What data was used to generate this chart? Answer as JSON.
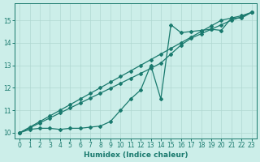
{
  "title": "",
  "xlabel": "Humidex (Indice chaleur)",
  "ylabel": "",
  "background_color": "#cceee9",
  "line_color": "#1a7a6e",
  "grid_color": "#b0d8d2",
  "xlim": [
    -0.5,
    23.5
  ],
  "ylim": [
    9.75,
    15.75
  ],
  "xticks": [
    0,
    1,
    2,
    3,
    4,
    5,
    6,
    7,
    8,
    9,
    10,
    11,
    12,
    13,
    14,
    15,
    16,
    17,
    18,
    19,
    20,
    21,
    22,
    23
  ],
  "yticks": [
    10,
    11,
    12,
    13,
    14,
    15
  ],
  "line1_x": [
    0,
    1,
    2,
    3,
    4,
    5,
    6,
    7,
    8,
    9,
    10,
    11,
    12,
    13,
    14,
    15,
    16,
    17,
    18,
    19,
    20,
    21,
    22,
    23
  ],
  "line1_y": [
    10.0,
    10.25,
    10.5,
    10.75,
    11.0,
    11.25,
    11.5,
    11.75,
    12.0,
    12.25,
    12.5,
    12.75,
    13.0,
    13.25,
    13.5,
    13.75,
    14.0,
    14.25,
    14.5,
    14.75,
    15.0,
    15.1,
    15.2,
    15.35
  ],
  "line2_x": [
    0,
    1,
    2,
    3,
    4,
    5,
    6,
    7,
    8,
    9,
    10,
    11,
    12,
    13,
    14,
    15,
    16,
    17,
    18,
    19,
    20,
    21,
    22,
    23
  ],
  "line2_y": [
    10.0,
    10.22,
    10.44,
    10.66,
    10.88,
    11.1,
    11.32,
    11.54,
    11.76,
    11.98,
    12.2,
    12.42,
    12.64,
    12.86,
    13.1,
    13.5,
    13.9,
    14.2,
    14.4,
    14.6,
    14.8,
    15.0,
    15.15,
    15.35
  ],
  "line3_x": [
    0,
    1,
    2,
    3,
    4,
    5,
    6,
    7,
    8,
    9,
    10,
    11,
    12,
    13,
    14,
    15,
    16,
    17,
    18,
    19,
    20,
    21,
    22,
    23
  ],
  "line3_y": [
    10.0,
    10.15,
    10.2,
    10.2,
    10.15,
    10.2,
    10.2,
    10.25,
    10.3,
    10.5,
    11.0,
    11.5,
    11.9,
    13.0,
    11.5,
    14.8,
    14.45,
    14.5,
    14.55,
    14.6,
    14.55,
    15.1,
    15.1,
    15.35
  ]
}
